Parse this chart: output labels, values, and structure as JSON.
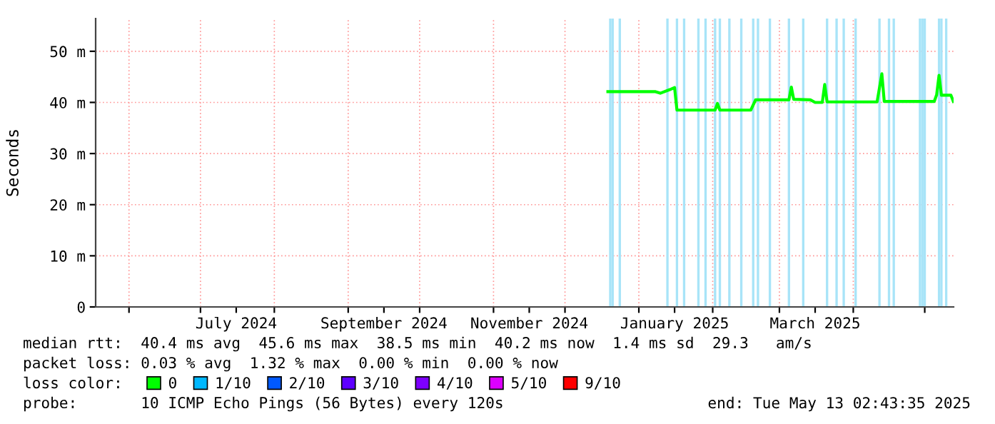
{
  "chart_data": {
    "type": "line",
    "ylabel": "Seconds",
    "legend_title": "loss color:",
    "x": [
      "2024-12-19",
      "2025-01-08",
      "2025-01-10",
      "2025-01-14",
      "2025-01-16",
      "2025-01-17",
      "2025-01-22",
      "2025-02-02",
      "2025-02-03",
      "2025-02-04",
      "2025-02-17",
      "2025-02-19",
      "2025-03-05",
      "2025-03-06",
      "2025-03-07",
      "2025-03-14",
      "2025-03-16",
      "2025-03-19",
      "2025-03-20",
      "2025-03-21",
      "2025-04-11",
      "2025-04-13",
      "2025-04-14",
      "2025-05-05",
      "2025-05-06",
      "2025-05-07",
      "2025-05-08",
      "2025-05-12",
      "2025-05-13"
    ],
    "series": [
      {
        "name": "0",
        "color": "#00ff00",
        "values": [
          42.1,
          42.1,
          41.8,
          42.5,
          42.9,
          38.5,
          38.5,
          38.5,
          39.8,
          38.5,
          38.5,
          40.5,
          40.5,
          43.0,
          40.6,
          40.5,
          40.0,
          40.0,
          43.5,
          40.1,
          40.1,
          45.6,
          40.2,
          40.2,
          41.5,
          45.3,
          41.4,
          41.4,
          40.2
        ]
      },
      {
        "name": "1/10",
        "color": "#00b8ff",
        "values": [
          null,
          null,
          null,
          null,
          null,
          null,
          null,
          null,
          null,
          null,
          null,
          null,
          null,
          null,
          null,
          null,
          null,
          null,
          null,
          null,
          null,
          null,
          null,
          null,
          null,
          null,
          null,
          null,
          null
        ]
      },
      {
        "name": "2/10",
        "color": "#0059ff",
        "values": [
          null,
          null,
          null,
          null,
          null,
          null,
          null,
          null,
          null,
          null,
          null,
          null,
          null,
          null,
          null,
          null,
          null,
          null,
          null,
          null,
          null,
          null,
          null,
          null,
          null,
          null,
          null,
          null,
          null
        ]
      },
      {
        "name": "3/10",
        "color": "#5e00ff",
        "values": [
          null,
          null,
          null,
          null,
          null,
          null,
          null,
          null,
          null,
          null,
          null,
          null,
          null,
          null,
          null,
          null,
          null,
          null,
          null,
          null,
          null,
          null,
          null,
          null,
          null,
          null,
          null,
          null,
          null
        ]
      },
      {
        "name": "4/10",
        "color": "#7e00ff",
        "values": [
          null,
          null,
          null,
          null,
          null,
          null,
          null,
          null,
          null,
          null,
          null,
          null,
          null,
          null,
          null,
          null,
          null,
          null,
          null,
          null,
          null,
          null,
          null,
          null,
          null,
          null,
          null,
          null,
          null
        ]
      },
      {
        "name": "5/10",
        "color": "#dd00ff",
        "values": [
          null,
          null,
          null,
          null,
          null,
          null,
          null,
          null,
          null,
          null,
          null,
          null,
          null,
          null,
          null,
          null,
          null,
          null,
          null,
          null,
          null,
          null,
          null,
          null,
          null,
          null,
          null,
          null,
          null
        ]
      },
      {
        "name": "9/10",
        "color": "#ff0000",
        "values": [
          null,
          null,
          null,
          null,
          null,
          null,
          null,
          null,
          null,
          null,
          null,
          null,
          null,
          null,
          null,
          null,
          null,
          null,
          null,
          null,
          null,
          null,
          null,
          null,
          null,
          null,
          null,
          null,
          null
        ]
      }
    ],
    "xlim": [
      "2024-05-18",
      "2025-05-13T02:43"
    ],
    "xticks": [
      {
        "value": "2024-06-01",
        "label": null
      },
      {
        "value": "2024-07-01",
        "label": null
      },
      {
        "value": "2024-07-16",
        "label": "July 2024"
      },
      {
        "value": "2024-08-01",
        "label": null
      },
      {
        "value": "2024-09-01",
        "label": null
      },
      {
        "value": "2024-09-16",
        "label": "September 2024"
      },
      {
        "value": "2024-10-01",
        "label": null
      },
      {
        "value": "2024-11-01",
        "label": null
      },
      {
        "value": "2024-11-16",
        "label": "November 2024"
      },
      {
        "value": "2024-12-01",
        "label": null
      },
      {
        "value": "2025-01-01",
        "label": null
      },
      {
        "value": "2025-01-16",
        "label": "January 2025"
      },
      {
        "value": "2025-02-01",
        "label": null
      },
      {
        "value": "2025-03-01",
        "label": null
      },
      {
        "value": "2025-03-16",
        "label": "March 2025"
      },
      {
        "value": "2025-04-01",
        "label": null
      },
      {
        "value": "2025-05-01",
        "label": null
      }
    ],
    "ylim": [
      0,
      56.4
    ],
    "yticks": [
      0,
      {
        "value": 10,
        "label": "10 m"
      },
      {
        "value": 20,
        "label": "20 m"
      },
      {
        "value": 30,
        "label": "30 m"
      },
      {
        "value": 40,
        "label": "40 m"
      },
      {
        "value": 50,
        "label": "50 m"
      }
    ],
    "grid": true,
    "legend": "bottom",
    "marker": "none",
    "line_style": "solid",
    "ref_lines": [
      {
        "axis": "x",
        "value": "2024-12-20",
        "color": "#a8e4f8"
      },
      {
        "axis": "x",
        "value": "2024-12-21",
        "color": "#a8e4f8"
      },
      {
        "axis": "x",
        "value": "2024-12-24",
        "color": "#a8e4f8"
      },
      {
        "axis": "x",
        "value": "2025-01-13",
        "color": "#a8e4f8"
      },
      {
        "axis": "x",
        "value": "2025-01-17",
        "color": "#a8e4f8"
      },
      {
        "axis": "x",
        "value": "2025-01-20",
        "color": "#a8e4f8"
      },
      {
        "axis": "x",
        "value": "2025-01-26",
        "color": "#a8e4f8"
      },
      {
        "axis": "x",
        "value": "2025-01-29",
        "color": "#a8e4f8"
      },
      {
        "axis": "x",
        "value": "2025-02-02",
        "color": "#a8e4f8"
      },
      {
        "axis": "x",
        "value": "2025-02-04",
        "color": "#a8e4f8"
      },
      {
        "axis": "x",
        "value": "2025-02-08",
        "color": "#a8e4f8"
      },
      {
        "axis": "x",
        "value": "2025-02-13",
        "color": "#a8e4f8"
      },
      {
        "axis": "x",
        "value": "2025-02-18",
        "color": "#a8e4f8"
      },
      {
        "axis": "x",
        "value": "2025-02-20",
        "color": "#a8e4f8"
      },
      {
        "axis": "x",
        "value": "2025-02-25",
        "color": "#a8e4f8"
      },
      {
        "axis": "x",
        "value": "2025-03-05",
        "color": "#a8e4f8"
      },
      {
        "axis": "x",
        "value": "2025-03-11",
        "color": "#a8e4f8"
      },
      {
        "axis": "x",
        "value": "2025-03-21",
        "color": "#a8e4f8"
      },
      {
        "axis": "x",
        "value": "2025-03-25",
        "color": "#a8e4f8"
      },
      {
        "axis": "x",
        "value": "2025-03-28",
        "color": "#a8e4f8"
      },
      {
        "axis": "x",
        "value": "2025-04-02",
        "color": "#a8e4f8"
      },
      {
        "axis": "x",
        "value": "2025-04-12",
        "color": "#a8e4f8"
      },
      {
        "axis": "x",
        "value": "2025-04-16",
        "color": "#a8e4f8"
      },
      {
        "axis": "x",
        "value": "2025-04-18",
        "color": "#a8e4f8"
      },
      {
        "axis": "x",
        "value": "2025-04-29",
        "color": "#a8e4f8"
      },
      {
        "axis": "x",
        "value": "2025-04-30",
        "color": "#a8e4f8"
      },
      {
        "axis": "x",
        "value": "2025-05-01",
        "color": "#a8e4f8"
      },
      {
        "axis": "x",
        "value": "2025-05-07",
        "color": "#a8e4f8"
      },
      {
        "axis": "x",
        "value": "2025-05-08",
        "color": "#a8e4f8"
      },
      {
        "axis": "x",
        "value": "2025-05-10",
        "color": "#a8e4f8"
      }
    ],
    "annotations": [
      "median rtt:  40.4 ms avg  45.6 ms max  38.5 ms min  40.2 ms now  1.4 ms sd  29.3   am/s",
      "packet loss: 0.03 % avg  1.32 % max  0.00 % min  0.00 % now",
      "probe:       10 ICMP Echo Pings (56 Bytes) every 120s",
      "end: Tue May 13 02:43:35 2025"
    ]
  }
}
